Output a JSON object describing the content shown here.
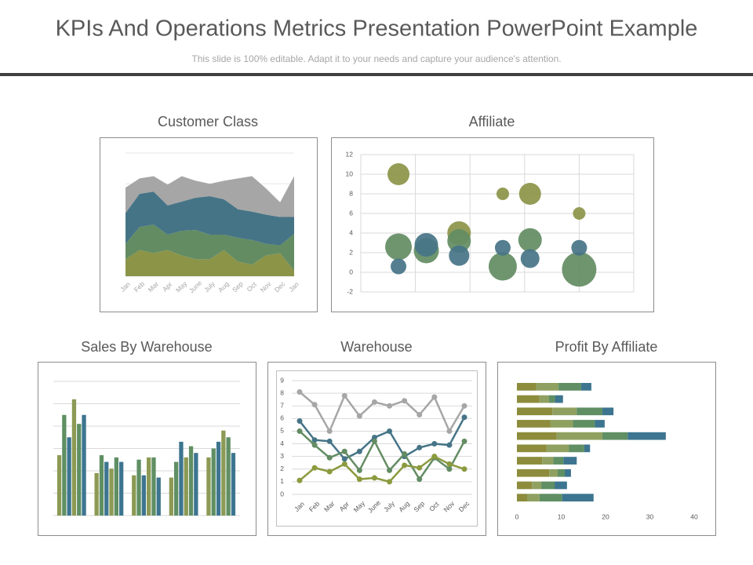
{
  "header": {
    "title": "KPIs And Operations Metrics Presentation PowerPoint Example",
    "subtitle": "This slide is 100% editable. Adapt it to your needs and capture your audience's attention."
  },
  "chart_data": [
    {
      "type": "area",
      "title": "Customer Class",
      "categories": [
        "Jan",
        "Feb",
        "Mar",
        "Apr",
        "May",
        "June",
        "July",
        "Aug",
        "Sep",
        "Oct",
        "Nov",
        "Dec",
        "Jan"
      ],
      "ylim": [
        0,
        160
      ],
      "series": [
        {
          "color": "#8c9448",
          "values": [
            22,
            34,
            30,
            34,
            27,
            22,
            22,
            34,
            19,
            15,
            27,
            30,
            7
          ]
        },
        {
          "color": "#638c63",
          "values": [
            20,
            30,
            37,
            20,
            32,
            38,
            32,
            20,
            31,
            32,
            15,
            10,
            48
          ]
        },
        {
          "color": "#467487",
          "values": [
            40,
            43,
            43,
            38,
            38,
            42,
            50,
            46,
            37,
            37,
            38,
            37,
            22
          ]
        },
        {
          "color": "#a6a6a6",
          "values": [
            33,
            20,
            20,
            27,
            33,
            22,
            16,
            24,
            40,
            46,
            34,
            19,
            53
          ]
        }
      ]
    },
    {
      "type": "bubble",
      "title": "Affiliate",
      "xlim": [
        0,
        5
      ],
      "ylim": [
        -2,
        12
      ],
      "yticks": [
        -2,
        0,
        2,
        4,
        6,
        8,
        10,
        12
      ],
      "grid": true,
      "series": [
        {
          "color": "#8c9448",
          "x": [
            0.69,
            1.8,
            2.6,
            3.1,
            4.0
          ],
          "values": [
            10,
            4,
            8,
            8,
            6
          ],
          "sizes": [
            14,
            15,
            8,
            14,
            8
          ]
        },
        {
          "color": "#638c63",
          "x": [
            0.69,
            1.2,
            1.8,
            2.6,
            3.1,
            4.0
          ],
          "values": [
            2.6,
            2.2,
            3.2,
            0.6,
            3.3,
            0.3
          ],
          "sizes": [
            17,
            16,
            15,
            18,
            15,
            22
          ]
        },
        {
          "color": "#467487",
          "x": [
            0.69,
            1.2,
            1.8,
            2.6,
            3.1,
            4.0
          ],
          "values": [
            0.6,
            2.8,
            1.7,
            2.5,
            1.4,
            2.5
          ],
          "sizes": [
            10,
            15,
            13,
            10,
            12,
            10
          ]
        }
      ]
    },
    {
      "type": "bar",
      "title": "Sales By Warehouse",
      "categories": [
        null,
        null,
        null,
        null,
        null
      ],
      "ylim": [
        0,
        6
      ],
      "series": [
        {
          "color": "#8c9a54",
          "values": [
            2.7,
            1.9,
            1.8,
            1.7,
            2.6
          ]
        },
        {
          "color": "#5f8f63",
          "values": [
            4.5,
            2.7,
            2.5,
            2.4,
            3.0
          ]
        },
        {
          "color": "#3d7590",
          "values": [
            3.5,
            2.4,
            1.8,
            3.3,
            3.3
          ]
        },
        {
          "color": "#8c9a54",
          "values": [
            5.2,
            2.1,
            2.6,
            2.6,
            3.8
          ]
        },
        {
          "color": "#5f8f63",
          "values": [
            4.1,
            2.6,
            2.6,
            3.1,
            3.5
          ]
        },
        {
          "color": "#3d7590",
          "values": [
            4.5,
            2.4,
            1.7,
            2.8,
            2.8
          ]
        }
      ]
    },
    {
      "type": "line",
      "title": "Warehouse",
      "categories": [
        "Jan",
        "Feb",
        "Mar",
        "Apr",
        "May",
        "June",
        "July",
        "Aug",
        "Sep",
        "Oct",
        "Nov",
        "Dec"
      ],
      "ylim": [
        0,
        9
      ],
      "yticks": [
        0,
        1,
        2,
        3,
        4,
        5,
        6,
        7,
        8,
        9
      ],
      "grid": true,
      "series": [
        {
          "color": "#a6a6a6",
          "values": [
            8.1,
            7.1,
            5.0,
            7.8,
            6.2,
            7.3,
            7.0,
            7.4,
            6.3,
            7.7,
            5.0,
            7.0
          ]
        },
        {
          "color": "#467487",
          "values": [
            5.8,
            4.3,
            4.2,
            2.8,
            3.4,
            4.5,
            5.0,
            3.0,
            3.7,
            4.0,
            3.9,
            6.1
          ]
        },
        {
          "color": "#638c63",
          "values": [
            5.0,
            3.9,
            2.9,
            3.4,
            1.9,
            4.2,
            1.9,
            3.2,
            1.2,
            2.9,
            2.0,
            4.2
          ]
        },
        {
          "color": "#8c9a3e",
          "values": [
            1.1,
            2.1,
            1.8,
            2.4,
            1.2,
            1.3,
            1.0,
            2.3,
            2.1,
            3.0,
            2.4,
            2.0
          ]
        }
      ]
    },
    {
      "type": "barh",
      "title": "Profit By Affiliate",
      "categories": [
        null,
        null,
        null,
        null,
        null,
        null,
        null,
        null,
        null,
        null
      ],
      "xlim": [
        0,
        40
      ],
      "xticks": [
        0,
        10,
        20,
        30,
        40
      ],
      "series": [
        {
          "color": "#8c8c3c",
          "values": [
            4.4,
            5.1,
            8.0,
            7.6,
            9.0,
            6.7,
            5.7,
            7.3,
            3.4,
            2.3
          ]
        },
        {
          "color": "#8fa060",
          "values": [
            5.0,
            2.1,
            5.5,
            5.0,
            10.3,
            5.0,
            2.5,
            1.9,
            2.1,
            2.8
          ]
        },
        {
          "color": "#5f8f63",
          "values": [
            5.1,
            1.4,
            5.8,
            5.0,
            5.7,
            3.5,
            2.3,
            1.6,
            3.0,
            5.1
          ]
        },
        {
          "color": "#3d7590",
          "values": [
            2.3,
            1.8,
            2.5,
            2.2,
            8.6,
            1.3,
            3.0,
            1.4,
            2.8,
            7.1
          ]
        }
      ]
    }
  ]
}
